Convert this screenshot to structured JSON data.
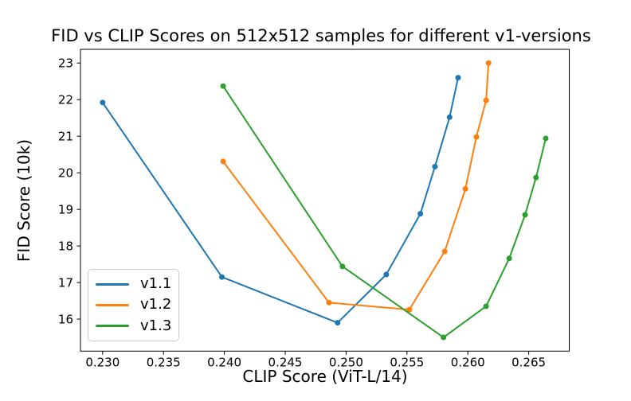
{
  "chart_data": {
    "type": "line",
    "title": "FID vs CLIP Scores on 512x512 samples for different v1-versions",
    "xlabel": "CLIP Score (ViT-L/14)",
    "ylabel": "FID Score (10k)",
    "xlim": [
      0.22818,
      0.26833
    ],
    "ylim": [
      15.125,
      23.375
    ],
    "xticks": [
      0.23,
      0.235,
      0.24,
      0.245,
      0.25,
      0.255,
      0.26,
      0.265
    ],
    "yticks": [
      16,
      17,
      18,
      19,
      20,
      21,
      22,
      23
    ],
    "grid": false,
    "legend_position": "lower-left",
    "marker": "circle",
    "series": [
      {
        "name": "v1.1",
        "color": "#1f77b4",
        "x": [
          0.23,
          0.2398,
          0.2493,
          0.2533,
          0.2561,
          0.2573,
          0.2585,
          0.2592
        ],
        "y": [
          21.92,
          17.15,
          15.9,
          17.22,
          18.88,
          20.17,
          21.52,
          22.6
        ]
      },
      {
        "name": "v1.2",
        "color": "#ff7f0e",
        "x": [
          0.2399,
          0.2486,
          0.2552,
          0.2581,
          0.2598,
          0.2607,
          0.2615,
          0.2617
        ],
        "y": [
          20.31,
          16.45,
          16.26,
          17.85,
          19.56,
          20.98,
          21.98,
          23.0
        ]
      },
      {
        "name": "v1.3",
        "color": "#2ca02c",
        "x": [
          0.2399,
          0.2497,
          0.258,
          0.2615,
          0.2634,
          0.2647,
          0.2656,
          0.2664
        ],
        "y": [
          22.37,
          17.44,
          15.5,
          16.35,
          17.66,
          18.85,
          19.87,
          20.94
        ]
      }
    ]
  }
}
